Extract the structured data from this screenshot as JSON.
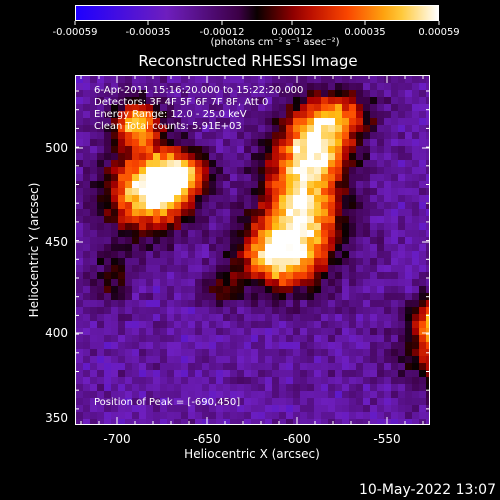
{
  "colorbar": {
    "ticks": [
      "-0.00059",
      "-0.00035",
      "-0.00012",
      "0.00012",
      "0.00035",
      "0.00059"
    ],
    "units": "(photons cm⁻² s⁻¹ asec⁻²)"
  },
  "title": "Reconstructed RHESSI Image",
  "annotations": {
    "time": "6-Apr-2011 15:16:20.000 to 15:22:20.000",
    "detectors": "Detectors: 3F 4F 5F 6F 7F 8F, Att 0",
    "energy": "Energy Range: 12.0 - 25.0 keV",
    "clean": "Clean     Total counts: 5.91E+03",
    "peak": "Position of Peak = [-690,450]"
  },
  "axes": {
    "xlabel": "Heliocentric X (arcsec)",
    "ylabel": "Heliocentric Y (arcsec)",
    "xticks": [
      "-700",
      "-650",
      "-600",
      "-550"
    ],
    "yticks": [
      "500",
      "450",
      "400",
      "350"
    ],
    "xrange": [
      -720,
      -575
    ],
    "yrange": [
      348,
      518
    ]
  },
  "footer": {
    "date": "10-May-2022 13:07"
  }
}
